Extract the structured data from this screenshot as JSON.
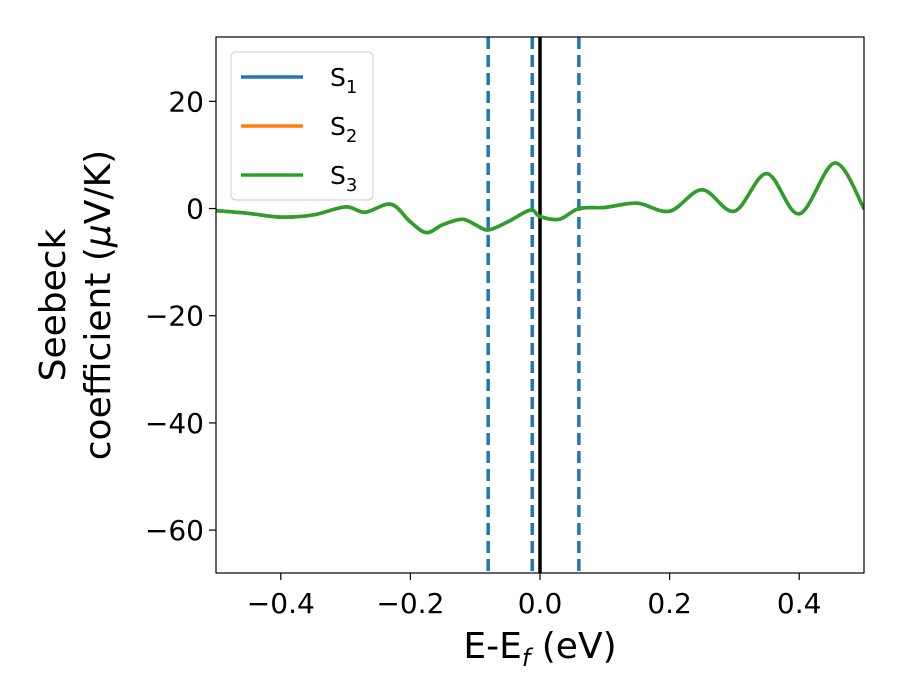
{
  "chart_data": {
    "type": "line",
    "xlabel": {
      "base": "E-E",
      "subscript": "f",
      "suffix": " (eV)"
    },
    "ylabel": {
      "line1": "Seebeck",
      "line2": "coefficient  (",
      "mu": "μ",
      "unit": "V/K)"
    },
    "xlim": [
      -0.5,
      0.5
    ],
    "ylim": [
      -68,
      32
    ],
    "xticks": [
      -0.4,
      -0.2,
      0.0,
      0.2,
      0.4
    ],
    "xtick_labels": [
      "−0.4",
      "−0.2",
      "0.0",
      "0.2",
      "0.4"
    ],
    "yticks": [
      20,
      0,
      -20,
      -40,
      -60
    ],
    "ytick_labels": [
      "20",
      "0",
      "−20",
      "−40",
      "−60"
    ],
    "grid": false,
    "legend_position": "top-left",
    "series": [
      {
        "name": "S",
        "name_sub": "1",
        "color": "#1f77b4",
        "x": [
          -0.5,
          -0.45,
          -0.4,
          -0.35,
          -0.3,
          -0.27,
          -0.23,
          -0.2,
          -0.175,
          -0.15,
          -0.12,
          -0.1,
          -0.08,
          -0.05,
          -0.015,
          0.0,
          0.03,
          0.06,
          0.1,
          0.15,
          0.2,
          0.25,
          0.3,
          0.35,
          0.4,
          0.455,
          0.5
        ],
        "y": [
          -0.4,
          -0.9,
          -1.6,
          -1.2,
          0.3,
          -0.7,
          0.8,
          -2.5,
          -4.5,
          -3.0,
          -2.0,
          -3.0,
          -4.0,
          -2.5,
          -0.3,
          -1.5,
          -2.0,
          0.0,
          0.2,
          1.0,
          -0.5,
          3.5,
          -0.5,
          6.5,
          -1.0,
          8.5,
          0.0
        ]
      },
      {
        "name": "S",
        "name_sub": "2",
        "color": "#ff7f0e",
        "x": [
          -0.5,
          -0.45,
          -0.4,
          -0.35,
          -0.3,
          -0.27,
          -0.23,
          -0.2,
          -0.175,
          -0.15,
          -0.12,
          -0.1,
          -0.08,
          -0.05,
          -0.015,
          0.0,
          0.03,
          0.06,
          0.1,
          0.15,
          0.2,
          0.25,
          0.3,
          0.35,
          0.4,
          0.455,
          0.5
        ],
        "y": [
          -0.4,
          -0.9,
          -1.6,
          -1.2,
          0.3,
          -0.7,
          0.8,
          -2.5,
          -4.5,
          -3.0,
          -2.0,
          -3.0,
          -4.0,
          -2.5,
          -0.3,
          -1.5,
          -2.0,
          0.0,
          0.2,
          1.0,
          -0.5,
          3.5,
          -0.5,
          6.5,
          -1.0,
          8.5,
          0.0
        ]
      },
      {
        "name": "S",
        "name_sub": "3",
        "color": "#2ca02c",
        "x": [
          -0.5,
          -0.45,
          -0.4,
          -0.35,
          -0.3,
          -0.27,
          -0.23,
          -0.2,
          -0.175,
          -0.15,
          -0.12,
          -0.1,
          -0.08,
          -0.05,
          -0.015,
          0.0,
          0.03,
          0.06,
          0.1,
          0.15,
          0.2,
          0.25,
          0.3,
          0.35,
          0.4,
          0.455,
          0.5
        ],
        "y": [
          -0.4,
          -0.9,
          -1.6,
          -1.2,
          0.3,
          -0.7,
          0.8,
          -2.5,
          -4.5,
          -3.0,
          -2.0,
          -3.0,
          -4.0,
          -2.5,
          -0.3,
          -1.5,
          -2.0,
          0.0,
          0.2,
          1.0,
          -0.5,
          3.5,
          -0.5,
          6.5,
          -1.0,
          8.5,
          0.0
        ]
      }
    ],
    "vertical_lines": [
      {
        "x": -0.08,
        "style": "dashed",
        "color": "#1f77b4"
      },
      {
        "x": -0.012,
        "style": "dashed",
        "color": "#1f77b4"
      },
      {
        "x": 0.06,
        "style": "dashed",
        "color": "#1f77b4"
      },
      {
        "x": 0.0,
        "style": "solid",
        "color": "#000000"
      }
    ]
  }
}
